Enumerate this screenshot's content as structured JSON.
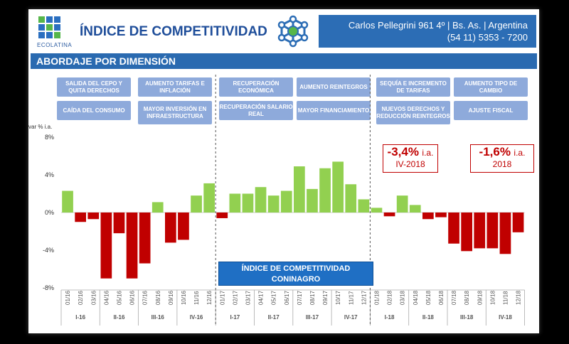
{
  "header": {
    "logo_text": "ECOLATINA",
    "title": "ÍNDICE DE COMPETITIVIDAD",
    "contact_line1": "Carlos Pellegrini 961 4º | Bs. As. | Argentina",
    "contact_line2": "(54 11) 5353 - 7200",
    "colors": {
      "brand_blue": "#2c6db5",
      "logo_green": "#56b64a",
      "logo_blue": "#2a6fc0"
    }
  },
  "section_title": "ABORDAJE POR DIMENSIÓN",
  "dimension_boxes": [
    {
      "label": "SALIDA DEL CEPO Y QUITA DERECHOS"
    },
    {
      "label": "AUMENTO TARIFAS E INFLACIÓN"
    },
    {
      "label": "CAÍDA DEL CONSUMO"
    },
    {
      "label": "MAYOR INVERSIÓN EN INFRAESTRUCTURA"
    },
    {
      "label": "RECUPERACIÓN ECONÓMICA"
    },
    {
      "label": "AUMENTO REINTEGROS"
    },
    {
      "label": "RECUPERACIÓN SALARIO REAL"
    },
    {
      "label": "MAYOR FINANCIAMIENTO"
    },
    {
      "label": "SEQUÍA E INCREMENTO DE TARIFAS"
    },
    {
      "label": "AUMENTO TIPO DE CAMBIO"
    },
    {
      "label": "NUEVOS DERECHOS Y REDUCCIÓN REINTEGROS"
    },
    {
      "label": "AJUSTE FISCAL"
    }
  ],
  "callouts": [
    {
      "value": "-3,4%",
      "unit": "i.a.",
      "period": "IV-2018"
    },
    {
      "value": "-1,6%",
      "unit": "i.a.",
      "period": "2018"
    }
  ],
  "banner": {
    "line1": "ÍNDICE DE COMPETITIVIDAD",
    "line2": "CONINAGRO"
  },
  "chart_data": {
    "type": "bar",
    "ylabel": "var % i.a.",
    "ylim": [
      -8,
      8
    ],
    "yticks": [
      "8%",
      "4%",
      "0%",
      "-4%",
      "-8%"
    ],
    "categories": [
      "01/16",
      "02/16",
      "03/16",
      "04/16",
      "05/16",
      "06/16",
      "07/16",
      "08/16",
      "09/16",
      "10/16",
      "11/16",
      "12/16",
      "01/17",
      "02/17",
      "03/17",
      "04/17",
      "05/17",
      "06/17",
      "07/17",
      "08/17",
      "09/17",
      "10/17",
      "11/17",
      "12/17",
      "01/18",
      "02/18",
      "03/18",
      "04/18",
      "05/18",
      "06/18",
      "07/18",
      "08/18",
      "09/18",
      "10/18",
      "11/18",
      "12/18"
    ],
    "values": [
      2.3,
      -1.0,
      -0.7,
      -7.0,
      -2.2,
      -7.0,
      -5.4,
      1.1,
      -3.2,
      -2.9,
      1.8,
      3.1,
      -0.6,
      2.0,
      2.0,
      2.7,
      1.8,
      2.3,
      4.9,
      2.5,
      4.7,
      5.4,
      3.0,
      1.4,
      0.5,
      -0.4,
      1.8,
      0.8,
      -0.7,
      -0.5,
      -3.3,
      -4.1,
      -3.8,
      -3.8,
      -4.4,
      -2.1
    ],
    "quarter_labels": [
      "I-16",
      "II-16",
      "III-16",
      "IV-16",
      "I-17",
      "II-17",
      "III-17",
      "IV-17",
      "I-18",
      "II-18",
      "III-18",
      "IV-18"
    ],
    "colors": {
      "positive": "#92d050",
      "negative": "#c00000"
    }
  }
}
